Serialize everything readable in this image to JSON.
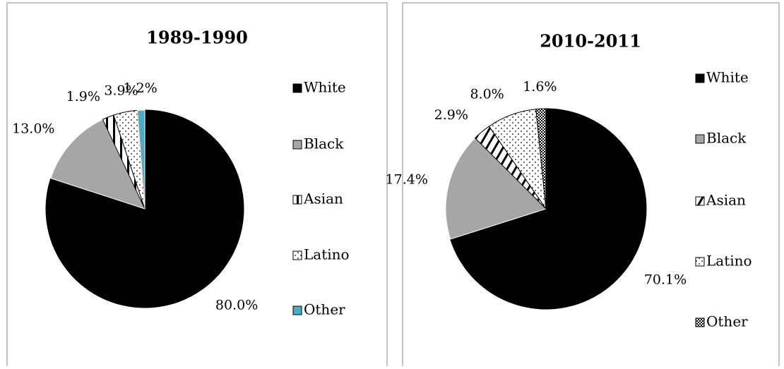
{
  "chart_data": [
    {
      "type": "pie",
      "title": "1989-1990",
      "categories": [
        "White",
        "Black",
        "Asian",
        "Latino",
        "Other"
      ],
      "values": [
        80.0,
        13.0,
        1.9,
        3.9,
        1.2
      ],
      "value_labels": [
        "80.0%",
        "13.0%",
        "1.9%",
        "3.9%",
        "1.2%"
      ],
      "colors": [
        "#000000",
        "#a6a6a6",
        "#000000",
        "#000000",
        "#4bacc6"
      ],
      "patterns": [
        "solid",
        "solid",
        "vertical",
        "dots",
        "solid"
      ]
    },
    {
      "type": "pie",
      "title": "2010-2011",
      "categories": [
        "White",
        "Black",
        "Asian",
        "Latino",
        "Other"
      ],
      "values": [
        70.1,
        17.4,
        2.9,
        8.0,
        1.6
      ],
      "value_labels": [
        "70.1%",
        "17.4%",
        "2.9%",
        "8.0%",
        "1.6%"
      ],
      "colors": [
        "#000000",
        "#a6a6a6",
        "#000000",
        "#000000",
        "#000000"
      ],
      "patterns": [
        "solid",
        "solid",
        "diagonal",
        "dots",
        "checker"
      ]
    }
  ]
}
